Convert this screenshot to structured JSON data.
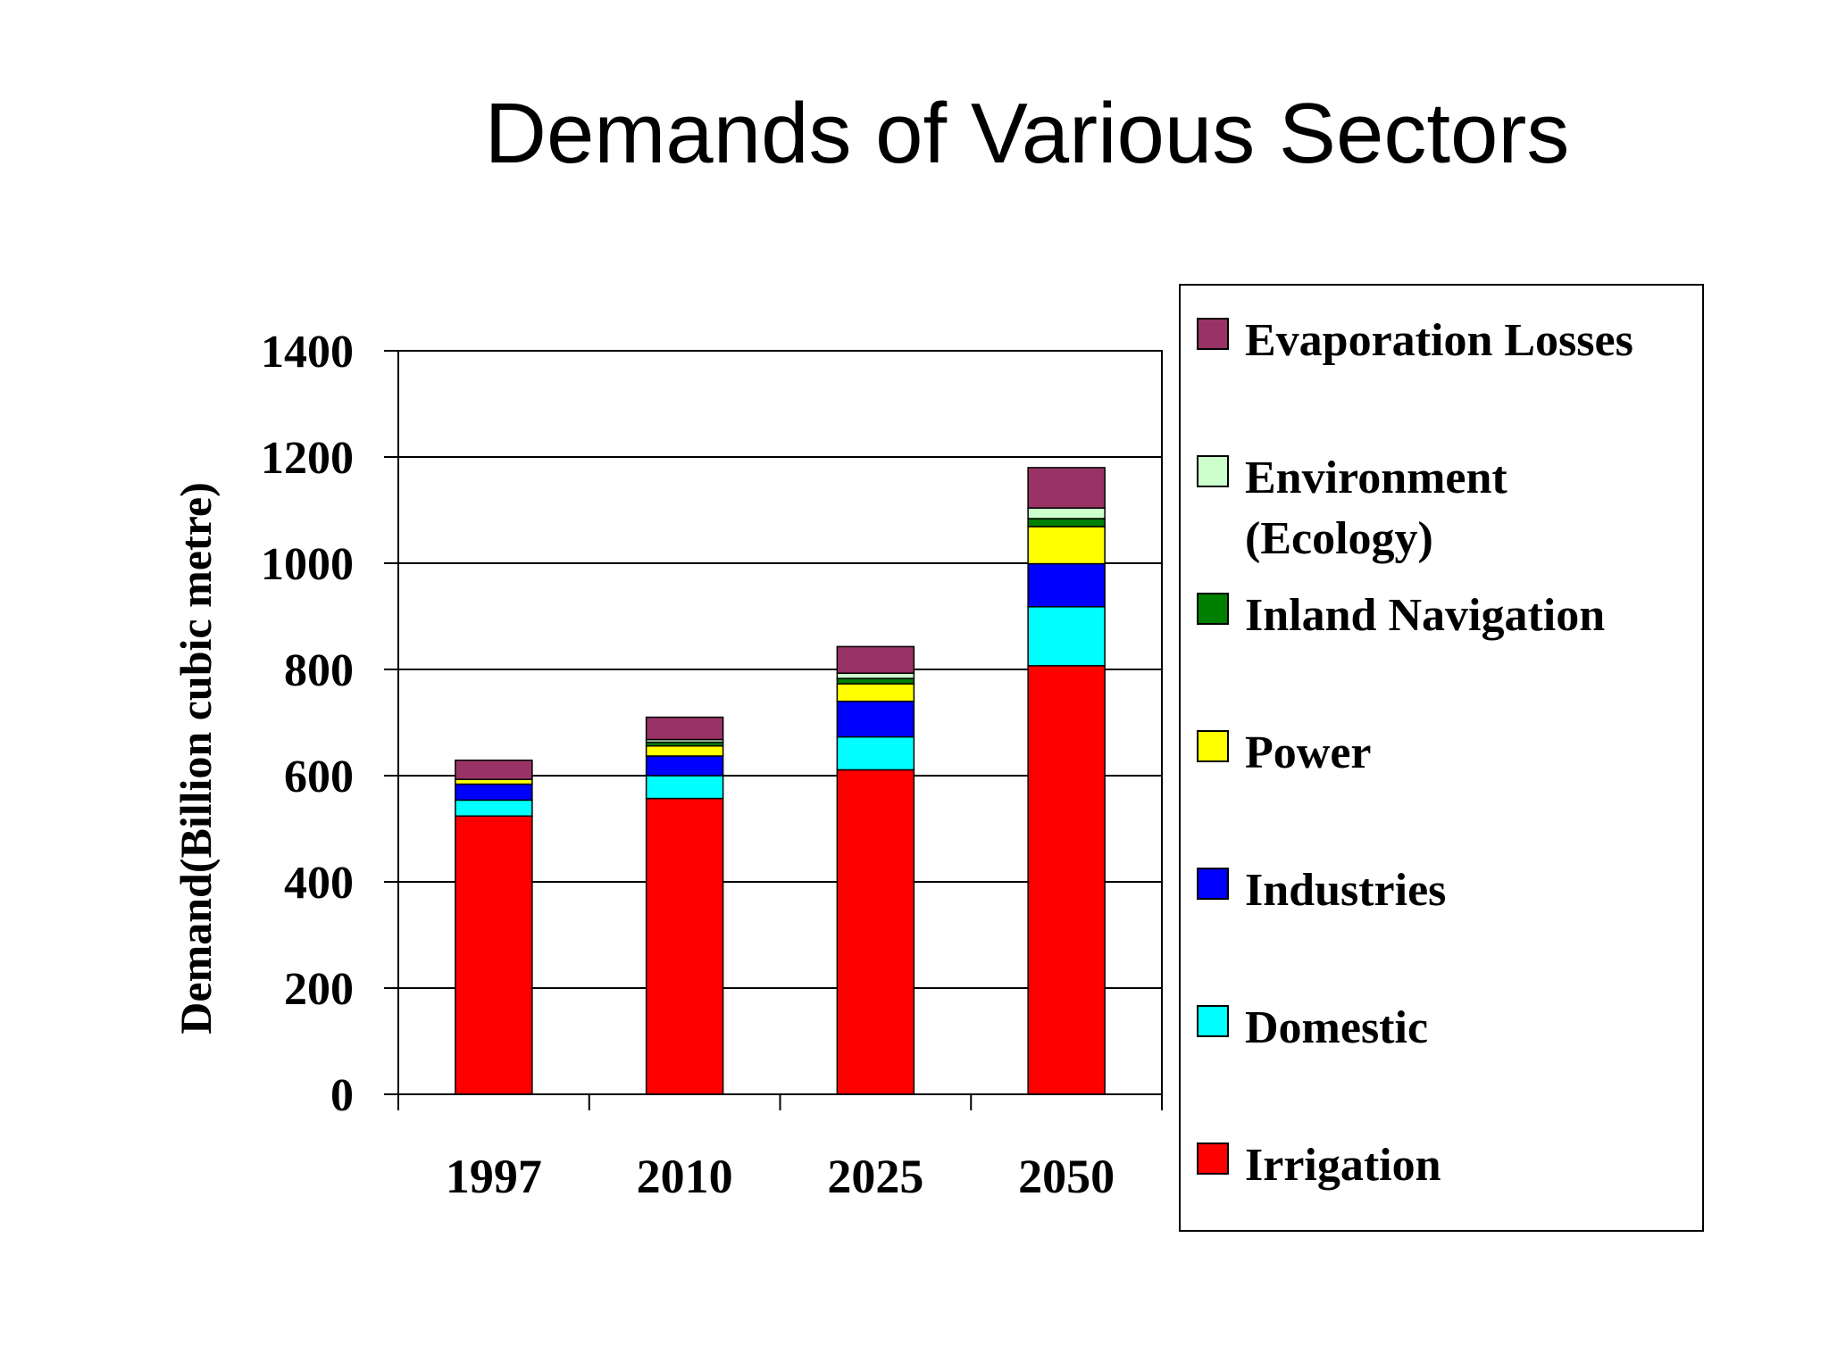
{
  "slide": {
    "title": "Demands of Various Sectors"
  },
  "chart_data": {
    "type": "bar",
    "stacked": true,
    "title": "",
    "xlabel": "",
    "ylabel": "Demand(Billion cubic metre)",
    "ylim": [
      0,
      1400
    ],
    "yticks": [
      0,
      200,
      400,
      600,
      800,
      1000,
      1200,
      1400
    ],
    "grid": true,
    "legend_position": "right",
    "categories": [
      "1997",
      "2010",
      "2025",
      "2050"
    ],
    "series": [
      {
        "name": "Irrigation",
        "color": "#FF0000",
        "values": [
          524,
          557,
          611,
          807
        ]
      },
      {
        "name": "Domestic",
        "color": "#00FFFF",
        "values": [
          30,
          43,
          62,
          111
        ]
      },
      {
        "name": "Industries",
        "color": "#0000FF",
        "values": [
          30,
          37,
          67,
          81
        ]
      },
      {
        "name": "Power",
        "color": "#FFFF00",
        "values": [
          9,
          19,
          33,
          70
        ]
      },
      {
        "name": "Inland Navigation",
        "color": "#008000",
        "values": [
          0,
          7,
          10,
          15
        ]
      },
      {
        "name": "Environment (Ecology)",
        "color": "#CCFFCC",
        "values": [
          0,
          5,
          10,
          20
        ]
      },
      {
        "name": "Evaporation Losses",
        "color": "#993366",
        "values": [
          36,
          42,
          50,
          76
        ]
      }
    ],
    "legend": [
      {
        "series": "Evaporation Losses",
        "lines": [
          "Evaporation Losses"
        ]
      },
      {
        "series": "Environment (Ecology)",
        "lines": [
          "Environment",
          "(Ecology)"
        ]
      },
      {
        "series": "Inland Navigation",
        "lines": [
          "Inland Navigation"
        ]
      },
      {
        "series": "Power",
        "lines": [
          "Power"
        ]
      },
      {
        "series": "Industries",
        "lines": [
          "Industries"
        ]
      },
      {
        "series": "Domestic",
        "lines": [
          "Domestic"
        ]
      },
      {
        "series": "Irrigation",
        "lines": [
          "Irrigation"
        ]
      }
    ]
  }
}
